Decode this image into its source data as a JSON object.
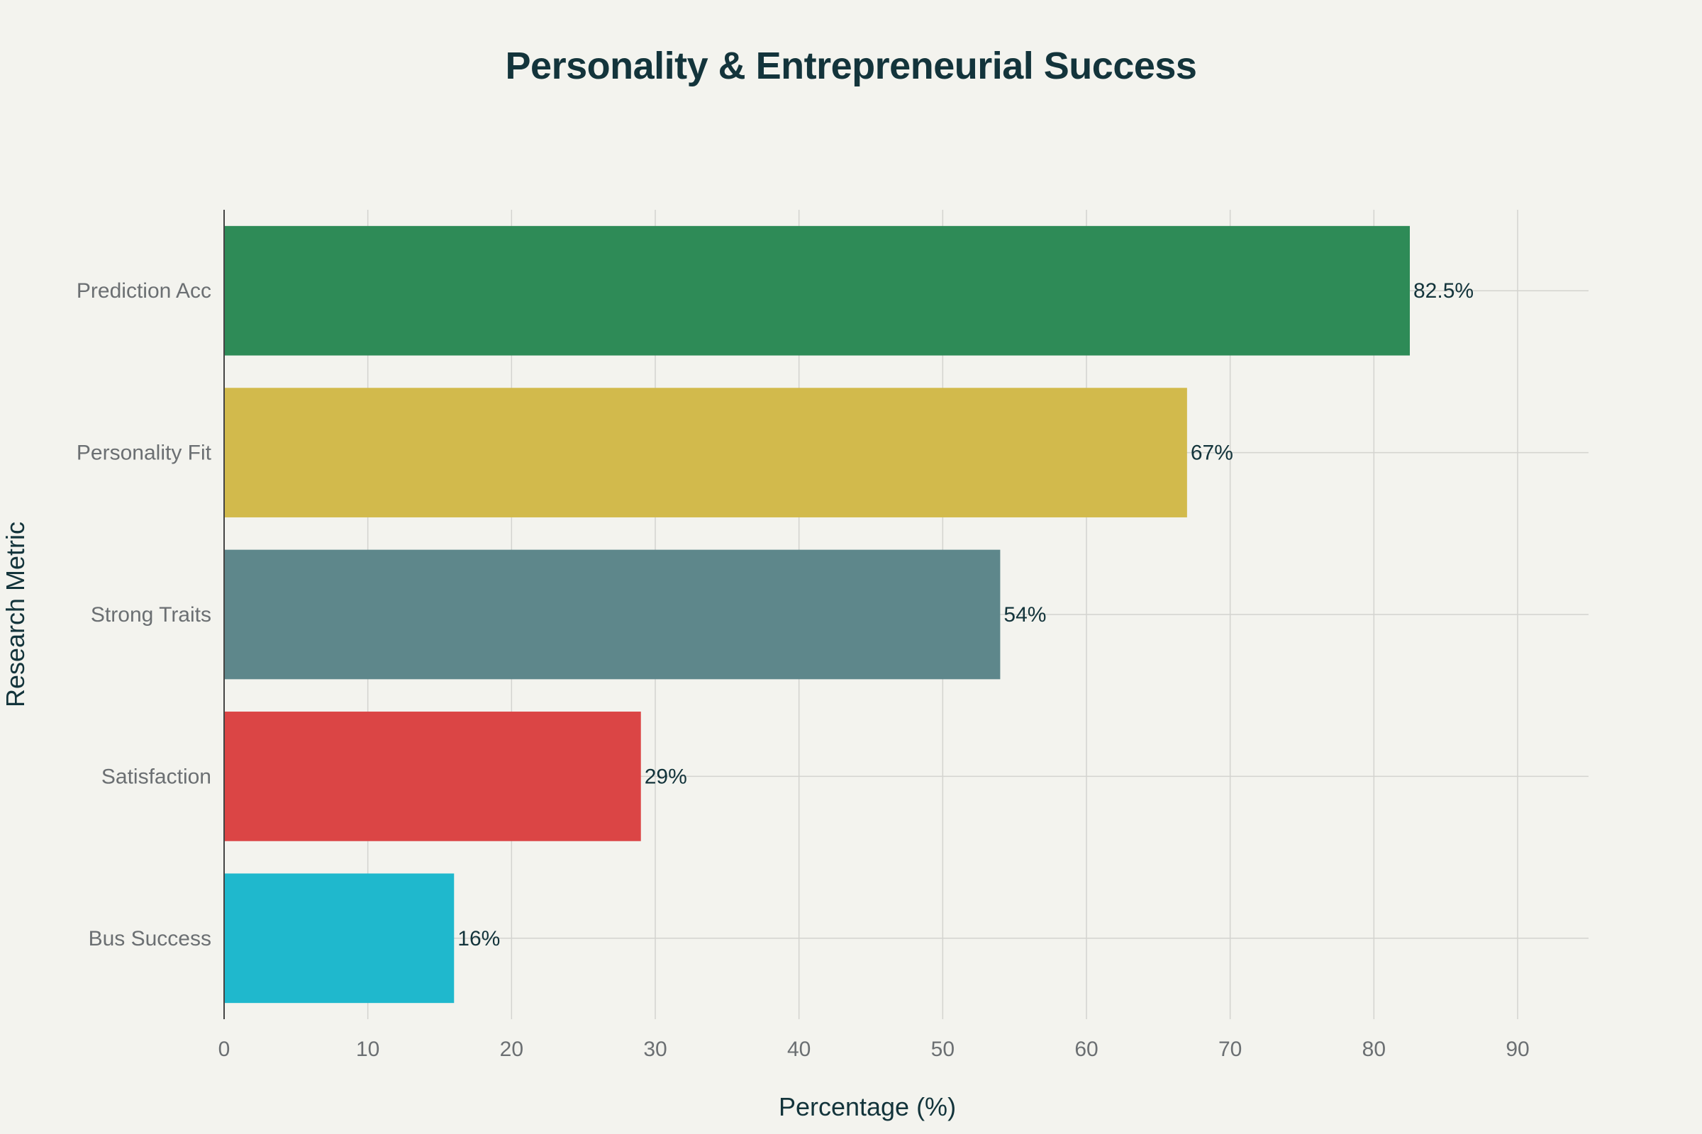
{
  "chart_data": {
    "type": "bar",
    "orientation": "horizontal",
    "title": "Personality & Entrepreneurial Success",
    "xlabel": "Percentage (%)",
    "ylabel": "Research Metric",
    "categories": [
      "Prediction Acc",
      "Personality Fit",
      "Strong Traits",
      "Satisfaction",
      "Bus Success"
    ],
    "values": [
      82.5,
      67,
      54,
      29,
      16
    ],
    "value_labels": [
      "82.5%",
      "67%",
      "54%",
      "29%",
      "16%"
    ],
    "colors": [
      "#2e8b57",
      "#d2ba4c",
      "#5e878b",
      "#db4545",
      "#1fb8cd"
    ],
    "xlim": [
      0,
      95
    ],
    "xticks": [
      0,
      10,
      20,
      30,
      40,
      50,
      60,
      70,
      80,
      90
    ],
    "xtick_labels": [
      "0",
      "10",
      "20",
      "30",
      "40",
      "50",
      "60",
      "70",
      "80",
      "90"
    ],
    "grid": true,
    "legend": false
  }
}
